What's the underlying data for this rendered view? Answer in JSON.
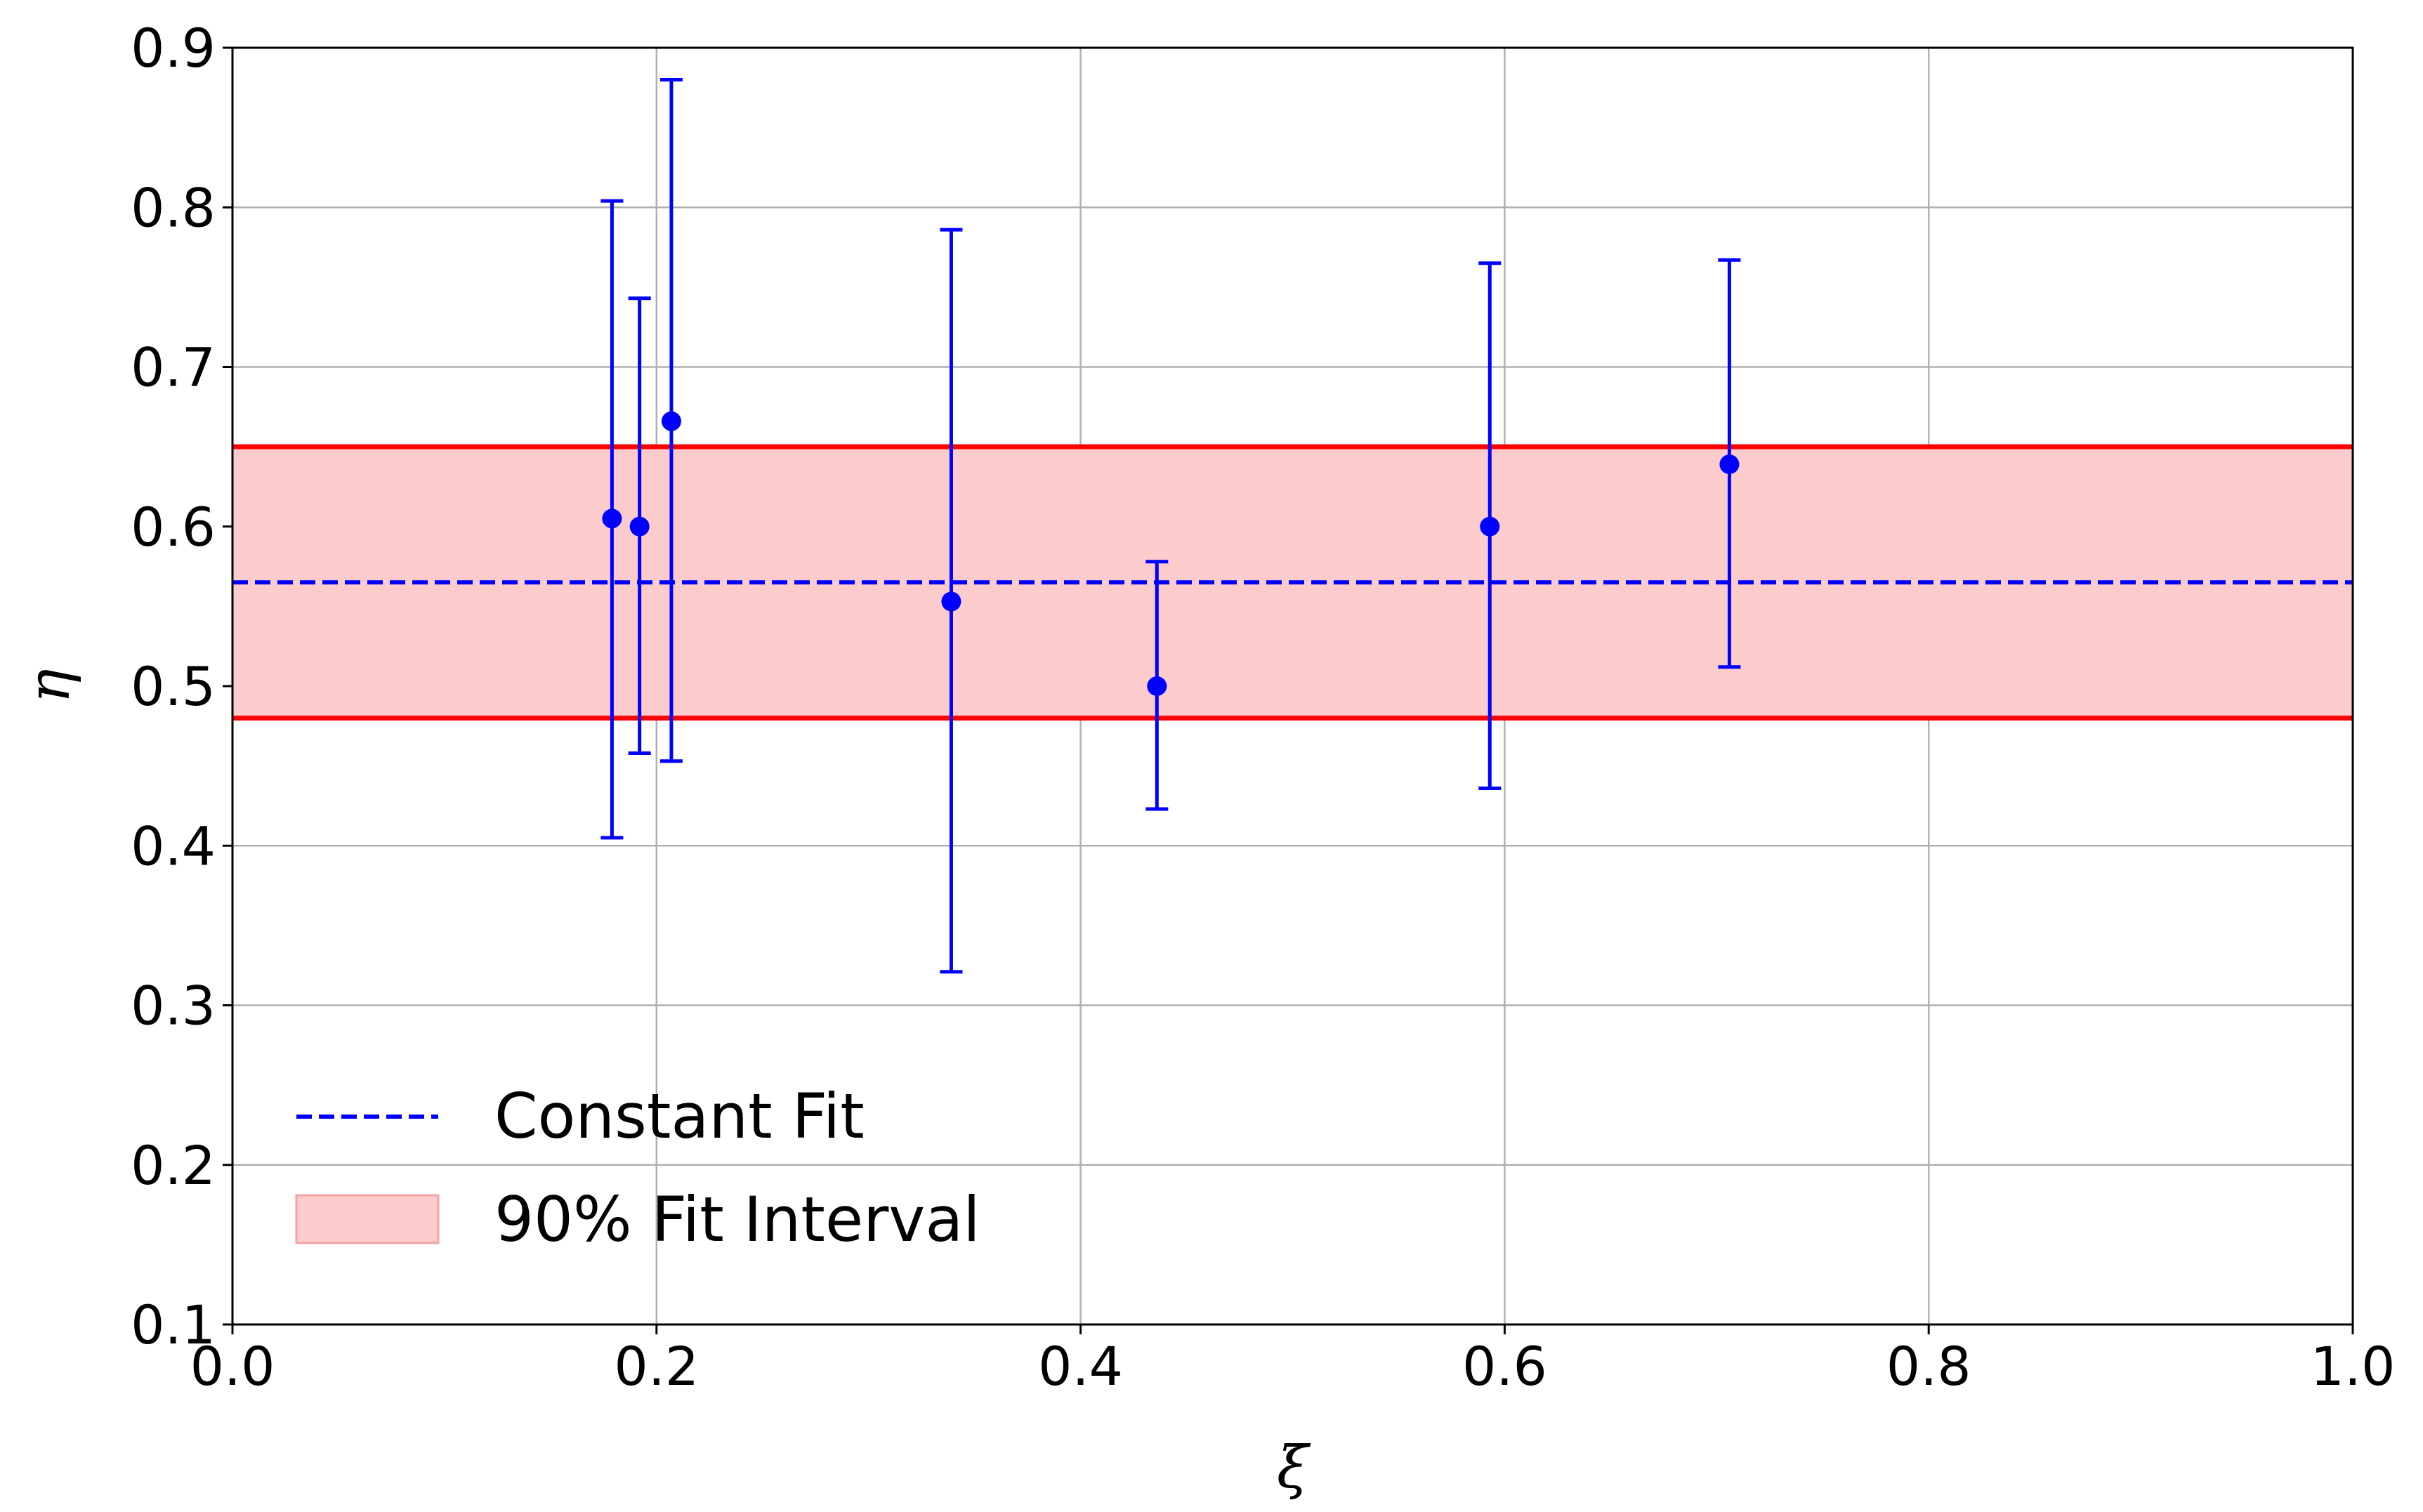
{
  "chart_data": {
    "type": "scatter",
    "xlabel": "ξ",
    "ylabel": "η",
    "xlim": [
      0.0,
      1.0
    ],
    "ylim": [
      0.1,
      0.9
    ],
    "x_ticks": [
      "0.0",
      "0.2",
      "0.4",
      "0.6",
      "0.8",
      "1.0"
    ],
    "y_ticks": [
      "0.1",
      "0.2",
      "0.3",
      "0.4",
      "0.5",
      "0.6",
      "0.7",
      "0.8",
      "0.9"
    ],
    "grid": true,
    "legend_position": "bottom-left",
    "series": [
      {
        "kind": "errorbar",
        "color": "#0000ff",
        "points": [
          {
            "x": 0.179,
            "y": 0.605,
            "y_low": 0.405,
            "y_high": 0.804
          },
          {
            "x": 0.192,
            "y": 0.6,
            "y_low": 0.458,
            "y_high": 0.743
          },
          {
            "x": 0.207,
            "y": 0.666,
            "y_low": 0.453,
            "y_high": 0.88
          },
          {
            "x": 0.339,
            "y": 0.553,
            "y_low": 0.321,
            "y_high": 0.786
          },
          {
            "x": 0.436,
            "y": 0.5,
            "y_low": 0.423,
            "y_high": 0.578
          },
          {
            "x": 0.593,
            "y": 0.6,
            "y_low": 0.436,
            "y_high": 0.765
          },
          {
            "x": 0.706,
            "y": 0.639,
            "y_low": 0.512,
            "y_high": 0.767
          }
        ]
      },
      {
        "kind": "hline",
        "name": "Constant Fit",
        "color": "#0000ff",
        "dashed": true,
        "y": 0.565
      },
      {
        "kind": "band",
        "name": "90% Fit Interval",
        "fill_color": "#fccbcb",
        "edge_color": "#ff0000",
        "y_low": 0.48,
        "y_high": 0.65
      }
    ]
  }
}
